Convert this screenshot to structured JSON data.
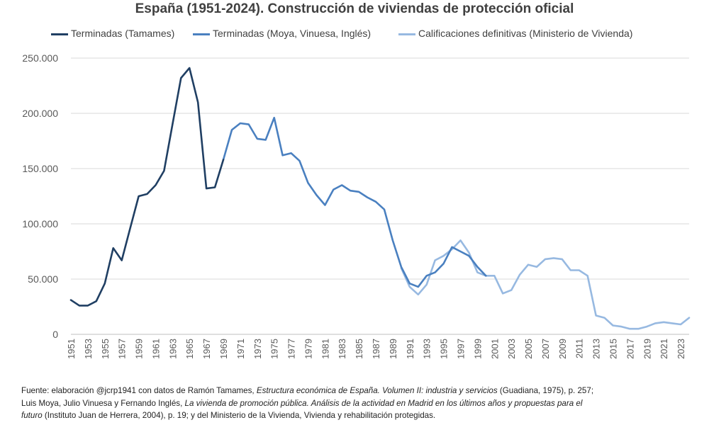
{
  "chart_data": {
    "type": "line",
    "title": "España (1951-2024). Construcción de viviendas de protección oficial",
    "xlabel": "",
    "ylabel": "",
    "ylim": [
      0,
      250000
    ],
    "yticks": [
      0,
      50000,
      100000,
      150000,
      200000,
      250000
    ],
    "ytick_labels": [
      "0",
      "50.000",
      "100.000",
      "150.000",
      "200.000",
      "250.000"
    ],
    "xlim": [
      1951,
      2024
    ],
    "xticks": [
      1951,
      1953,
      1955,
      1957,
      1959,
      1961,
      1963,
      1965,
      1967,
      1969,
      1971,
      1973,
      1975,
      1977,
      1979,
      1981,
      1983,
      1985,
      1987,
      1989,
      1991,
      1993,
      1995,
      1997,
      1999,
      2001,
      2003,
      2005,
      2007,
      2009,
      2011,
      2013,
      2015,
      2017,
      2019,
      2021,
      2023
    ],
    "grid": true,
    "legend_position": "top",
    "series": [
      {
        "name": "Terminadas (Tamames)",
        "color": "#203f63",
        "x": [
          1951,
          1952,
          1953,
          1954,
          1955,
          1956,
          1957,
          1958,
          1959,
          1960,
          1961,
          1962,
          1963,
          1964,
          1965,
          1966,
          1967,
          1968,
          1969
        ],
        "values": [
          31000,
          26000,
          26000,
          30000,
          46000,
          78000,
          67000,
          96000,
          125000,
          127000,
          135000,
          148000,
          190000,
          232000,
          241000,
          210000,
          132000,
          133000,
          158000
        ]
      },
      {
        "name": "Terminadas (Moya, Vinuesa, Inglés)",
        "color": "#4a80c0",
        "x": [
          1969,
          1970,
          1971,
          1972,
          1973,
          1974,
          1975,
          1976,
          1977,
          1978,
          1979,
          1980,
          1981,
          1982,
          1983,
          1984,
          1985,
          1986,
          1987,
          1988,
          1989,
          1990,
          1991,
          1992,
          1993,
          1994,
          1995,
          1996,
          1997,
          1998,
          1999,
          2000
        ],
        "values": [
          158000,
          185000,
          191000,
          190000,
          177000,
          176000,
          196000,
          162000,
          164000,
          157000,
          137000,
          126000,
          117000,
          131000,
          135000,
          130000,
          129000,
          124000,
          120000,
          113000,
          85000,
          61000,
          46000,
          43000,
          53000,
          56000,
          64000,
          79000,
          75000,
          71000,
          61000,
          53000
        ]
      },
      {
        "name": "Calificaciones definitivas (Ministerio de Vivienda)",
        "color": "#97b9e1",
        "x": [
          1990,
          1991,
          1992,
          1993,
          1994,
          1995,
          1996,
          1997,
          1998,
          1999,
          2000,
          2001,
          2002,
          2003,
          2004,
          2005,
          2006,
          2007,
          2008,
          2009,
          2010,
          2011,
          2012,
          2013,
          2014,
          2015,
          2016,
          2017,
          2018,
          2019,
          2020,
          2021,
          2022,
          2023,
          2024
        ],
        "values": [
          60000,
          43000,
          36000,
          45000,
          67000,
          71000,
          77000,
          85000,
          74000,
          56000,
          53000,
          53000,
          37000,
          40000,
          54000,
          63000,
          61000,
          68000,
          69000,
          68000,
          58000,
          58000,
          53000,
          17000,
          15000,
          8000,
          7000,
          5000,
          5000,
          7000,
          10000,
          11000,
          10000,
          9000,
          15000
        ]
      }
    ]
  },
  "source": {
    "line1_a": "Fuente: elaboración @jcrp1941 con datos de Ramón Tamames, ",
    "line1_italic": "Estructura económica de España. Volumen II: industria y servicios",
    "line1_b": " (Guadiana, 1975), p. 257;",
    "line2_a": "Luis Moya, Julio Vinuesa y Fernando Inglés, ",
    "line2_italic": "La vivienda de promoción pública. Análisis de la actividad en Madrid en los últimos años y propuestas para el",
    "line3_italic": "futuro",
    "line3_b": " (Instituto Juan de Herrera, 2004), p. 19; y del Ministerio de la Vivienda, Vivienda y rehabilitación protegidas."
  }
}
